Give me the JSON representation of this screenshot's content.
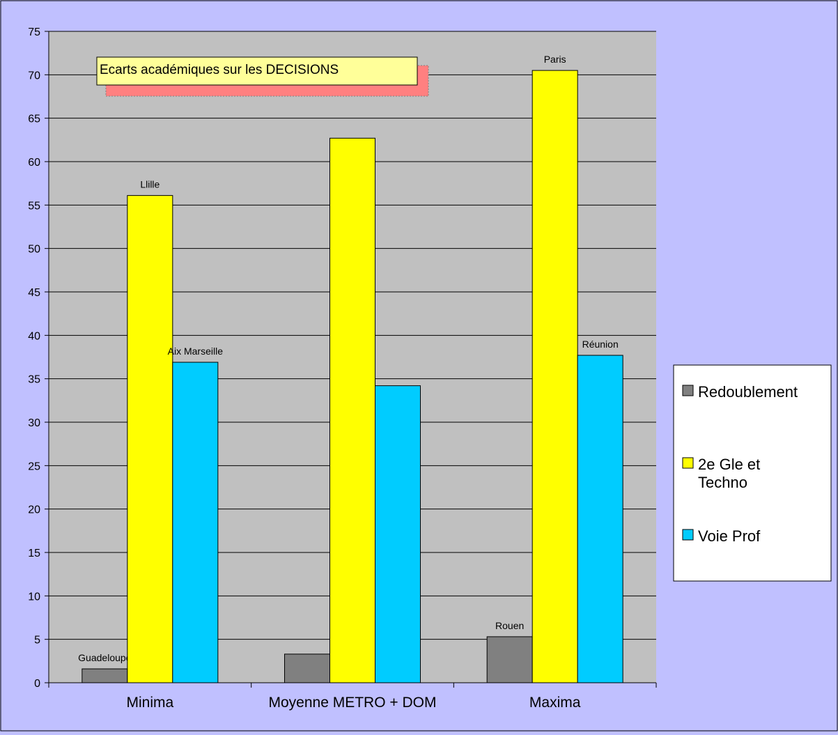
{
  "chart_data": {
    "type": "bar",
    "title": "Ecarts académiques sur les DECISIONS",
    "categories": [
      "Minima",
      "Moyenne METRO + DOM",
      "Maxima"
    ],
    "series": [
      {
        "name": "Redoublement",
        "color": "#808080",
        "values": [
          1.6,
          3.3,
          5.3
        ]
      },
      {
        "name": "2e Gle et Techno",
        "color": "#ffff00",
        "values": [
          56.1,
          62.7,
          70.5
        ]
      },
      {
        "name": "Voie Prof",
        "color": "#00ccff",
        "values": [
          36.9,
          34.2,
          37.7
        ]
      }
    ],
    "point_labels": [
      [
        "Guadeloupe",
        "",
        "Rouen"
      ],
      [
        "Llille",
        "",
        "Paris"
      ],
      [
        "Aix Marseille",
        "",
        "Réunion"
      ]
    ],
    "ylim": [
      0,
      75
    ],
    "yticks": [
      0,
      5,
      10,
      15,
      20,
      25,
      30,
      35,
      40,
      45,
      50,
      55,
      60,
      65,
      70,
      75
    ],
    "grid": true,
    "legend_position": "right",
    "plot_background": "#c0c0c0",
    "page_background": "#c0c0ff"
  }
}
